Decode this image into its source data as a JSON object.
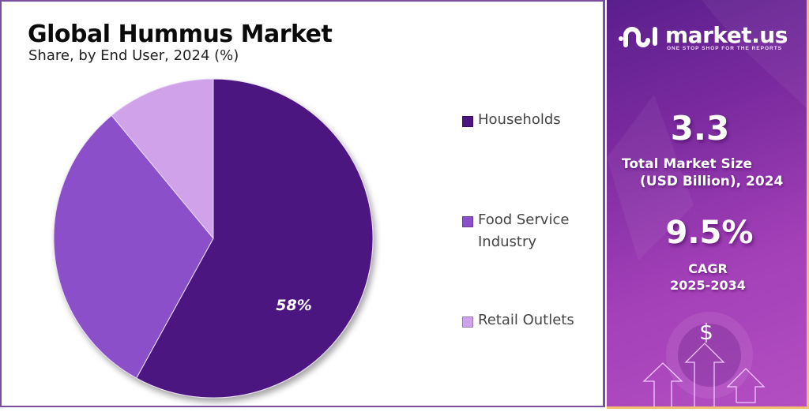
{
  "header": {
    "title": "Global Hummus Market",
    "subtitle": "Share, by End User, 2024 (%)"
  },
  "legend": [
    {
      "label": "Households",
      "color": "#4b1580"
    },
    {
      "label": "Food Service",
      "label2": "Industry",
      "color": "#8a4fc9"
    },
    {
      "label": "Retail Outlets",
      "color": "#cfa2ea"
    }
  ],
  "pie_label": "58%",
  "sidebar": {
    "brand": "market.us",
    "tagline": "ONE STOP SHOP FOR THE REPORTS",
    "market_size_value": "3.3",
    "market_size_label_1": "Total Market Size",
    "market_size_label_2": "(USD Billion), 2024",
    "cagr_value": "9.5%",
    "cagr_label_1": "CAGR",
    "cagr_label_2": "2025-2034",
    "dollar_symbol": "$"
  },
  "colors": {
    "households": "#4b1580",
    "food_service": "#8a4fc9",
    "retail": "#cfa2ea",
    "frame": "#7b4fa0",
    "accent_border": "#f0c070"
  },
  "chart_data": {
    "type": "pie",
    "title": "Global Hummus Market",
    "subtitle": "Share, by End User, 2024 (%)",
    "categories": [
      "Households",
      "Food Service Industry",
      "Retail Outlets"
    ],
    "values": [
      58,
      31,
      11
    ],
    "data_labels": {
      "Households": "58%"
    },
    "start_angle": "12 o'clock, clockwise",
    "legend_position": "right"
  }
}
